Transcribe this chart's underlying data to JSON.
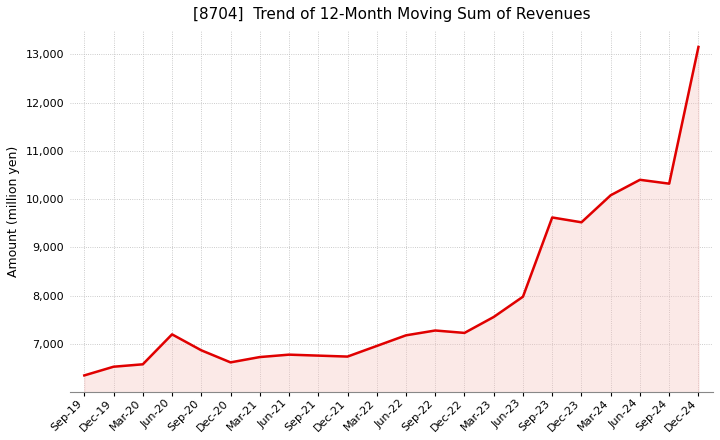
{
  "title": "[8704]  Trend of 12-Month Moving Sum of Revenues",
  "ylabel": "Amount (million yen)",
  "x_labels": [
    "Sep-19",
    "Dec-19",
    "Mar-20",
    "Jun-20",
    "Sep-20",
    "Dec-20",
    "Mar-21",
    "Jun-21",
    "Sep-21",
    "Dec-21",
    "Mar-22",
    "Jun-22",
    "Sep-22",
    "Dec-22",
    "Mar-23",
    "Jun-23",
    "Sep-23",
    "Dec-23",
    "Mar-24",
    "Jun-24",
    "Sep-24",
    "Dec-24"
  ],
  "values": [
    6350,
    6530,
    6580,
    7200,
    6870,
    6620,
    6730,
    6780,
    6760,
    6740,
    6960,
    7180,
    7280,
    7230,
    7560,
    7980,
    9620,
    9520,
    10080,
    10400,
    10320,
    13150
  ],
  "line_color": "#e00000",
  "fill_color": "#f5c0bc",
  "background_color": "#ffffff",
  "grid_color": "#bbbbbb",
  "ylim_min": 6000,
  "ylim_max": 13500,
  "yticks": [
    7000,
    8000,
    9000,
    10000,
    11000,
    12000,
    13000
  ],
  "title_fontsize": 11,
  "axis_fontsize": 8,
  "ylabel_fontsize": 9,
  "fill_alpha": 0.35
}
